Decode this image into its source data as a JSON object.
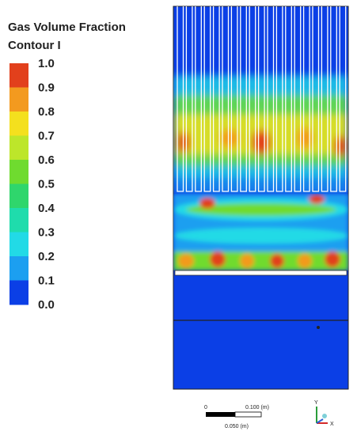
{
  "legend": {
    "title": [
      "Gas Volume Fraction",
      "Contour I"
    ],
    "ticks": [
      "1.0",
      "0.9",
      "0.8",
      "0.7",
      "0.6",
      "0.5",
      "0.4",
      "0.3",
      "0.2",
      "0.1",
      "0.0"
    ],
    "colors": [
      "#e2401c",
      "#f39a1f",
      "#f4e01e",
      "#bde62a",
      "#6fdb2f",
      "#2fd66c",
      "#1fdcac",
      "#22dae6",
      "#1c9ff0",
      "#0b3fe6"
    ]
  },
  "scale_bar": {
    "start": "0",
    "end": "0.100 (m)",
    "middle": "0.050 (m)"
  },
  "triad": {
    "y": "Y",
    "x": "X"
  }
}
